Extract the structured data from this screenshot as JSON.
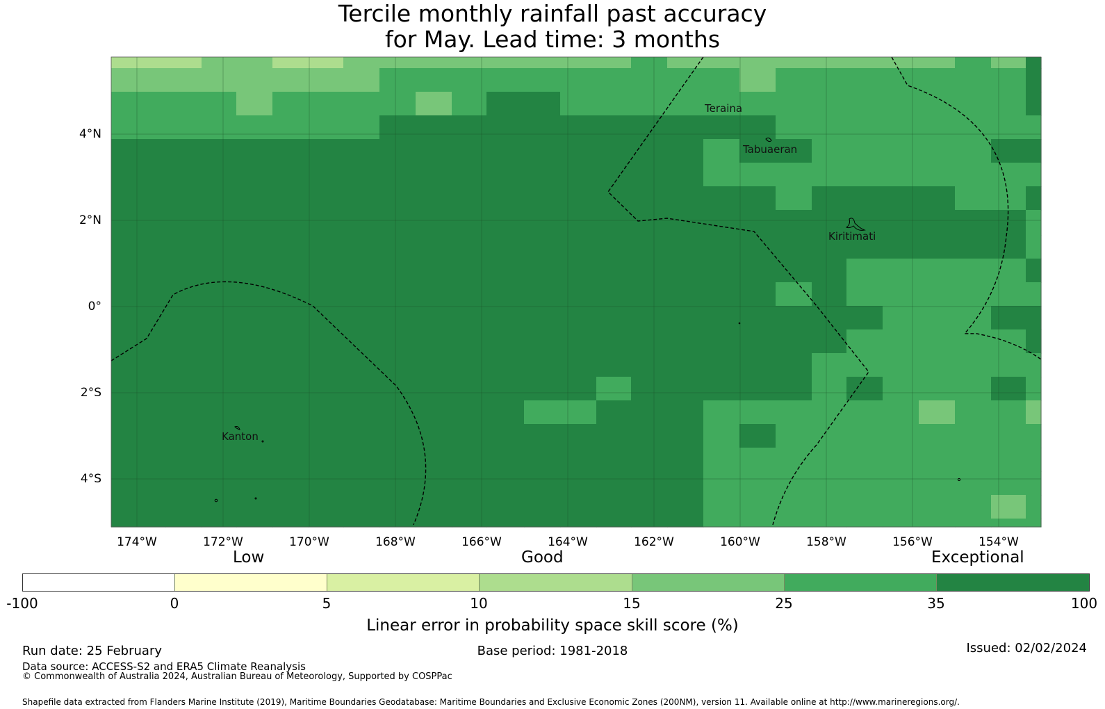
{
  "title": {
    "line1": "Tercile monthly rainfall past accuracy",
    "line2": "for May. Lead time: 3 months"
  },
  "axes": {
    "y_ticks": [
      "4°N",
      "2°N",
      "0°",
      "2°S",
      "4°S"
    ],
    "x_ticks": [
      "174°W",
      "172°W",
      "170°W",
      "168°W",
      "166°W",
      "164°W",
      "162°W",
      "160°W",
      "158°W",
      "156°W",
      "154°W"
    ]
  },
  "places": {
    "teraina": "Teraina",
    "tabuaeran": "Tabuaeran",
    "kiritimati": "Kiritimati",
    "kanton": "Kanton"
  },
  "legend": {
    "categories": {
      "low": "Low",
      "good": "Good",
      "exceptional": "Exceptional"
    },
    "tick_labels": [
      "-100",
      "0",
      "5",
      "10",
      "15",
      "25",
      "35",
      "100"
    ],
    "colors": [
      "#ffffff",
      "#ffffcc",
      "#d9f0a3",
      "#addd8e",
      "#78c679",
      "#41ab5d",
      "#238443"
    ],
    "label": "Linear error in probability space skill score (%)"
  },
  "footer": {
    "run_date": "Run date: 25 February",
    "base_period": "Base period: 1981-2018",
    "issued": "Issued: 02/02/2024",
    "data_source": "Data source: ACCESS-S2 and ERA5 Climate Reanalysis",
    "copyright": "© Commonwealth of Australia 2024, Australian Bureau of Meteorology, Supported by COSPPac",
    "shapefile": "Shapefile data extracted from Flanders Marine Institute (2019), Maritime Boundaries Geodatabase: Maritime Boundaries and Exclusive Economic Zones (200NM), version 11. Available online at http://www.marineregions.org/."
  }
}
